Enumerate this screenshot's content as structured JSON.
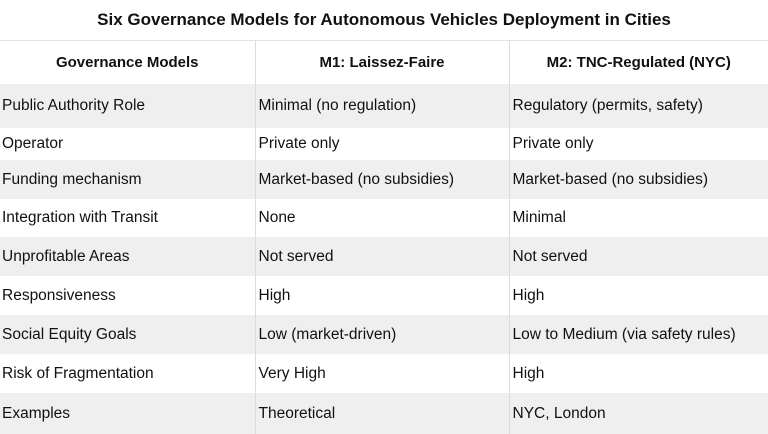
{
  "title": "Six Governance Models for Autonomous Vehicles Deployment in Cities",
  "headers": [
    "Governance Models",
    "M1: Laissez-Faire",
    "M2: TNC-Regulated (NYC)"
  ],
  "rows": [
    [
      "Public Authority Role",
      "Minimal (no regulation)",
      "Regulatory (permits, safety)"
    ],
    [
      "Operator",
      "Private only",
      "Private only"
    ],
    [
      "Funding mechanism",
      "Market-based (no subsidies)",
      "Market-based (no subsidies)"
    ],
    [
      "Integration with Transit",
      "None",
      "Minimal"
    ],
    [
      "Unprofitable Areas",
      "Not served",
      "Not served"
    ],
    [
      "Responsiveness",
      "High",
      "High"
    ],
    [
      "Social Equity Goals",
      "Low (market-driven)",
      "Low to Medium (via safety rules)"
    ],
    [
      "Risk of Fragmentation",
      "Very High",
      "High"
    ],
    [
      "Examples",
      "Theoretical",
      "NYC, London"
    ]
  ]
}
